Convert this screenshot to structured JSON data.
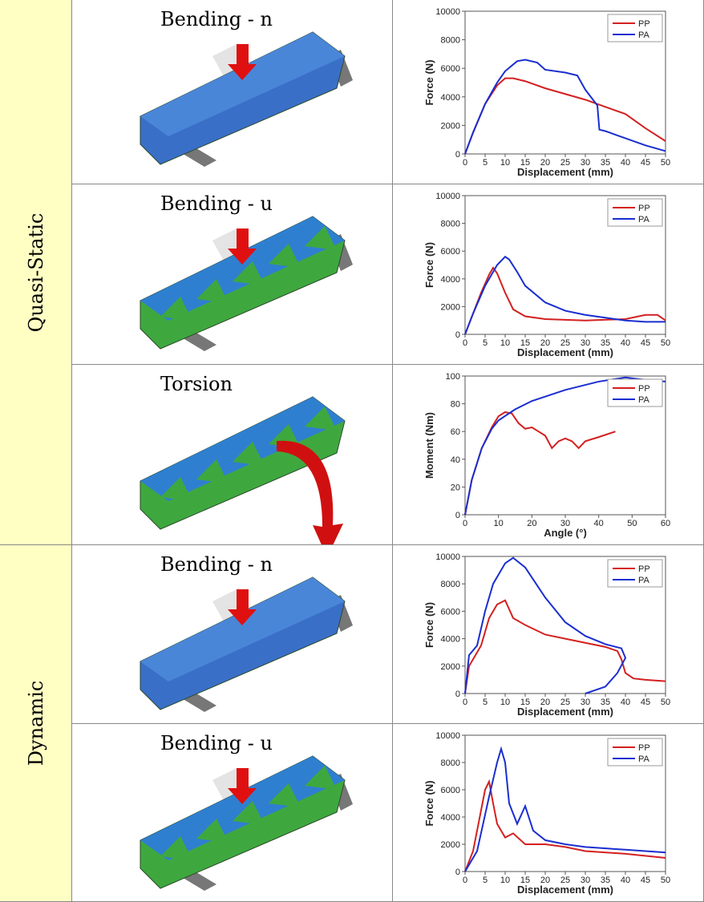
{
  "table": {
    "groups": [
      {
        "label": "Quasi-Static"
      },
      {
        "label": "Dynamic"
      }
    ],
    "rows": [
      {
        "label": "Bending - n"
      },
      {
        "label": "Bending - u"
      },
      {
        "label": "Torsion"
      },
      {
        "label": "Bending - n"
      },
      {
        "label": "Bending - u"
      }
    ]
  },
  "chart_data": [
    {
      "type": "line",
      "xlabel": "Displacement (mm)",
      "ylabel": "Force (N)",
      "xlim": [
        0,
        50
      ],
      "ylim": [
        0,
        10000
      ],
      "xticks": [
        0,
        5,
        10,
        15,
        20,
        25,
        30,
        35,
        40,
        45,
        50
      ],
      "yticks": [
        0,
        2000,
        4000,
        6000,
        8000,
        10000
      ],
      "legend": "upper right",
      "series": [
        {
          "name": "PP",
          "color": "#d42020",
          "x": [
            0,
            2,
            5,
            8,
            10,
            12,
            15,
            20,
            25,
            30,
            35,
            40,
            45,
            50
          ],
          "values": [
            0,
            1500,
            3500,
            4800,
            5300,
            5300,
            5100,
            4600,
            4200,
            3800,
            3300,
            2800,
            1800,
            900
          ]
        },
        {
          "name": "PA",
          "color": "#1a2ed0",
          "x": [
            0,
            2,
            5,
            8,
            10,
            13,
            15,
            18,
            20,
            25,
            28,
            30,
            33,
            33.5,
            35,
            40,
            45,
            50
          ],
          "values": [
            0,
            1500,
            3500,
            5000,
            5800,
            6500,
            6600,
            6400,
            5900,
            5700,
            5500,
            4500,
            3400,
            1700,
            1600,
            1100,
            600,
            200
          ]
        }
      ]
    },
    {
      "type": "line",
      "xlabel": "Displacement (mm)",
      "ylabel": "Force (N)",
      "xlim": [
        0,
        50
      ],
      "ylim": [
        0,
        10000
      ],
      "xticks": [
        0,
        5,
        10,
        15,
        20,
        25,
        30,
        35,
        40,
        45,
        50
      ],
      "yticks": [
        0,
        2000,
        4000,
        6000,
        8000,
        10000
      ],
      "legend": "upper right",
      "series": [
        {
          "name": "PP",
          "color": "#d42020",
          "x": [
            0,
            2,
            4,
            6,
            7,
            8,
            10,
            12,
            15,
            20,
            30,
            40,
            45,
            48,
            50
          ],
          "values": [
            0,
            1500,
            3000,
            4300,
            4800,
            4400,
            3000,
            1800,
            1300,
            1100,
            1000,
            1100,
            1400,
            1400,
            1000
          ]
        },
        {
          "name": "PA",
          "color": "#1a2ed0",
          "x": [
            0,
            2,
            5,
            8,
            10,
            11,
            13,
            15,
            20,
            25,
            30,
            35,
            40,
            45,
            50
          ],
          "values": [
            0,
            1500,
            3500,
            5000,
            5600,
            5400,
            4500,
            3500,
            2300,
            1700,
            1400,
            1200,
            1000,
            900,
            900
          ]
        }
      ]
    },
    {
      "type": "line",
      "xlabel": "Angle (°)",
      "ylabel": "Moment (Nm)",
      "xlim": [
        0,
        60
      ],
      "ylim": [
        0,
        100
      ],
      "xticks": [
        0,
        10,
        20,
        30,
        40,
        50,
        60
      ],
      "yticks": [
        0,
        20,
        40,
        60,
        80,
        100
      ],
      "legend": "upper right",
      "series": [
        {
          "name": "PP",
          "color": "#d42020",
          "x": [
            0,
            2,
            5,
            8,
            10,
            12,
            14,
            16,
            18,
            20,
            22,
            24,
            26,
            28,
            30,
            32,
            34,
            36,
            40,
            45
          ],
          "values": [
            0,
            25,
            48,
            63,
            71,
            74,
            73,
            66,
            62,
            63,
            60,
            57,
            48,
            53,
            55,
            53,
            48,
            53,
            56,
            60
          ]
        },
        {
          "name": "PA",
          "color": "#1a2ed0",
          "x": [
            0,
            2,
            5,
            8,
            10,
            15,
            20,
            30,
            40,
            48,
            55,
            60
          ],
          "values": [
            0,
            25,
            48,
            62,
            68,
            76,
            82,
            90,
            96,
            99,
            97,
            96
          ]
        }
      ]
    },
    {
      "type": "line",
      "xlabel": "Displacement (mm)",
      "ylabel": "Force (N)",
      "xlim": [
        0,
        50
      ],
      "ylim": [
        0,
        10000
      ],
      "xticks": [
        0,
        5,
        10,
        15,
        20,
        25,
        30,
        35,
        40,
        45,
        50
      ],
      "yticks": [
        0,
        2000,
        4000,
        6000,
        8000,
        10000
      ],
      "legend": "upper right",
      "series": [
        {
          "name": "PP",
          "color": "#d42020",
          "x": [
            0,
            1,
            2,
            4,
            6,
            8,
            10,
            12,
            15,
            20,
            25,
            30,
            35,
            38,
            39,
            40,
            42,
            45,
            50
          ],
          "values": [
            0,
            2000,
            2500,
            3500,
            5500,
            6500,
            6800,
            5500,
            5000,
            4300,
            4000,
            3700,
            3400,
            3100,
            2500,
            1500,
            1100,
            1000,
            900
          ]
        },
        {
          "name": "PA",
          "color": "#1a2ed0",
          "x": [
            0,
            1,
            3,
            5,
            7,
            10,
            12,
            15,
            20,
            25,
            30,
            35,
            39,
            40,
            38,
            35,
            30
          ],
          "values": [
            0,
            2800,
            3500,
            6000,
            8000,
            9500,
            9900,
            9200,
            7000,
            5200,
            4200,
            3600,
            3300,
            2600,
            1500,
            500,
            0
          ]
        }
      ]
    },
    {
      "type": "line",
      "xlabel": "Displacement (mm)",
      "ylabel": "Force (N)",
      "xlim": [
        0,
        50
      ],
      "ylim": [
        0,
        10000
      ],
      "xticks": [
        0,
        5,
        10,
        15,
        20,
        25,
        30,
        35,
        40,
        45,
        50
      ],
      "yticks": [
        0,
        2000,
        4000,
        6000,
        8000,
        10000
      ],
      "legend": "upper right",
      "series": [
        {
          "name": "PP",
          "color": "#d42020",
          "x": [
            0,
            2,
            4,
            5,
            6,
            7,
            8,
            10,
            12,
            15,
            20,
            25,
            30,
            40,
            50
          ],
          "values": [
            0,
            1500,
            4500,
            6000,
            6600,
            5000,
            3500,
            2500,
            2800,
            2000,
            2000,
            1800,
            1500,
            1300,
            1000
          ]
        },
        {
          "name": "PA",
          "color": "#1a2ed0",
          "x": [
            0,
            3,
            6,
            8,
            9,
            10,
            11,
            13,
            15,
            17,
            20,
            25,
            30,
            40,
            50
          ],
          "values": [
            0,
            1500,
            5500,
            8000,
            9000,
            8000,
            5000,
            3500,
            4800,
            3000,
            2300,
            2000,
            1800,
            1600,
            1400
          ]
        }
      ]
    }
  ]
}
